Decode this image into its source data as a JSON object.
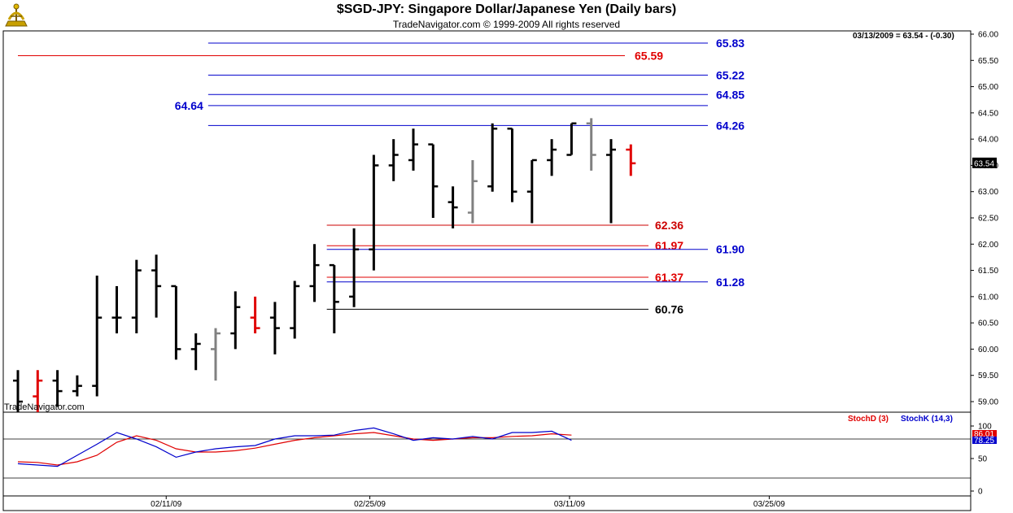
{
  "header": {
    "title": "$SGD-JPY:  Singapore Dollar/Japanese Yen  (Daily bars)",
    "subtitle": "TradeNavigator.com © 1999-2009 All rights reserved"
  },
  "price_readout": "03/13/2009 = 63.54 - (-0.30)",
  "watermark": "TradeNavigator.com",
  "colors": {
    "up_bar": "#000000",
    "neutral_bar": "#808080",
    "down_bar": "#e00000",
    "fib_blue": "#0000cc",
    "fib_red": "#cc0000",
    "stoch_d": "#cc0000",
    "stoch_k": "#0000cc"
  },
  "chart_data": [
    {
      "type": "ohlc",
      "title": "$SGD-JPY:  Singapore Dollar/Japanese Yen  (Daily bars)",
      "ylim": [
        58.8,
        66.0
      ],
      "y_ticks": [
        "59.00",
        "59.50",
        "60.00",
        "60.50",
        "61.00",
        "61.50",
        "62.00",
        "62.50",
        "63.00",
        "63.50",
        "64.00",
        "64.50",
        "65.00",
        "65.50",
        "66.00"
      ],
      "x_labels": [
        "02/11/09",
        "02/25/09",
        "03/11/09",
        "03/25/09"
      ],
      "last_price_label": "63.54",
      "bars": [
        {
          "o": 59.4,
          "h": 59.6,
          "l": 58.8,
          "c": 59.0,
          "color": "black"
        },
        {
          "o": 59.1,
          "h": 59.6,
          "l": 58.8,
          "c": 59.4,
          "color": "red"
        },
        {
          "o": 59.4,
          "h": 59.6,
          "l": 58.9,
          "c": 59.2,
          "color": "black"
        },
        {
          "o": 59.2,
          "h": 59.5,
          "l": 59.1,
          "c": 59.3,
          "color": "black"
        },
        {
          "o": 59.3,
          "h": 61.4,
          "l": 59.1,
          "c": 60.6,
          "color": "black"
        },
        {
          "o": 60.6,
          "h": 61.2,
          "l": 60.3,
          "c": 60.6,
          "color": "black"
        },
        {
          "o": 60.6,
          "h": 61.7,
          "l": 60.3,
          "c": 61.5,
          "color": "black"
        },
        {
          "o": 61.5,
          "h": 61.8,
          "l": 60.6,
          "c": 61.2,
          "color": "black"
        },
        {
          "o": 61.2,
          "h": 61.2,
          "l": 59.8,
          "c": 60.0,
          "color": "black"
        },
        {
          "o": 60.0,
          "h": 60.3,
          "l": 59.6,
          "c": 60.1,
          "color": "black"
        },
        {
          "o": 60.0,
          "h": 60.4,
          "l": 59.4,
          "c": 60.3,
          "color": "gray"
        },
        {
          "o": 60.3,
          "h": 61.1,
          "l": 60.0,
          "c": 60.8,
          "color": "black"
        },
        {
          "o": 60.6,
          "h": 61.0,
          "l": 60.3,
          "c": 60.4,
          "color": "red"
        },
        {
          "o": 60.6,
          "h": 60.9,
          "l": 59.9,
          "c": 60.4,
          "color": "black"
        },
        {
          "o": 60.4,
          "h": 61.3,
          "l": 60.2,
          "c": 61.2,
          "color": "black"
        },
        {
          "o": 61.2,
          "h": 62.0,
          "l": 60.9,
          "c": 61.6,
          "color": "black"
        },
        {
          "o": 61.6,
          "h": 61.6,
          "l": 60.3,
          "c": 60.9,
          "color": "black"
        },
        {
          "o": 61.0,
          "h": 62.3,
          "l": 60.8,
          "c": 61.9,
          "color": "black"
        },
        {
          "o": 61.9,
          "h": 63.7,
          "l": 61.5,
          "c": 63.5,
          "color": "black"
        },
        {
          "o": 63.5,
          "h": 64.0,
          "l": 63.2,
          "c": 63.7,
          "color": "black"
        },
        {
          "o": 63.6,
          "h": 64.2,
          "l": 63.4,
          "c": 63.9,
          "color": "black"
        },
        {
          "o": 63.9,
          "h": 63.9,
          "l": 62.5,
          "c": 63.1,
          "color": "black"
        },
        {
          "o": 62.8,
          "h": 63.1,
          "l": 62.3,
          "c": 62.7,
          "color": "black"
        },
        {
          "o": 62.6,
          "h": 63.6,
          "l": 62.4,
          "c": 63.2,
          "color": "gray"
        },
        {
          "o": 63.1,
          "h": 64.3,
          "l": 63.0,
          "c": 64.2,
          "color": "black"
        },
        {
          "o": 64.2,
          "h": 64.2,
          "l": 62.8,
          "c": 63.0,
          "color": "black"
        },
        {
          "o": 63.0,
          "h": 63.6,
          "l": 62.4,
          "c": 63.6,
          "color": "black"
        },
        {
          "o": 63.6,
          "h": 64.0,
          "l": 63.3,
          "c": 63.8,
          "color": "black"
        },
        {
          "o": 63.7,
          "h": 64.3,
          "l": 63.7,
          "c": 64.3,
          "color": "black"
        },
        {
          "o": 64.3,
          "h": 64.4,
          "l": 63.4,
          "c": 63.7,
          "color": "gray"
        },
        {
          "o": 63.7,
          "h": 64.0,
          "l": 62.4,
          "c": 63.8,
          "color": "black"
        },
        {
          "o": 63.8,
          "h": 63.9,
          "l": 63.3,
          "c": 63.54,
          "color": "red"
        }
      ],
      "levels": [
        {
          "value": 65.83,
          "label": "65.83",
          "color": "blue",
          "start_bar": 9.5,
          "label_side": "right"
        },
        {
          "value": 65.59,
          "label": "65.59",
          "color": "red",
          "start_bar": 0,
          "label_side": "right"
        },
        {
          "value": 65.22,
          "label": "65.22",
          "color": "blue",
          "start_bar": 9.5,
          "label_side": "right"
        },
        {
          "value": 64.85,
          "label": "64.85",
          "color": "blue",
          "start_bar": 9.5,
          "label_side": "right"
        },
        {
          "value": 64.64,
          "label": "64.64",
          "color": "blue",
          "start_bar": 9.5,
          "label_side": "left"
        },
        {
          "value": 64.26,
          "label": "64.26",
          "color": "blue",
          "start_bar": 9.5,
          "label_side": "right"
        },
        {
          "value": 62.36,
          "label": "62.36",
          "color": "darkred",
          "start_bar": 15.5,
          "label_side": "right"
        },
        {
          "value": 61.97,
          "label": "61.97",
          "color": "red",
          "start_bar": 15.5,
          "label_side": "right"
        },
        {
          "value": 61.9,
          "label": "61.90",
          "color": "blue",
          "start_bar": 15.5,
          "label_side": "far"
        },
        {
          "value": 61.37,
          "label": "61.37",
          "color": "red",
          "start_bar": 15.5,
          "label_side": "right"
        },
        {
          "value": 61.28,
          "label": "61.28",
          "color": "blue",
          "start_bar": 15.5,
          "label_side": "far"
        },
        {
          "value": 60.76,
          "label": "60.76",
          "color": "black",
          "start_bar": 15.5,
          "label_side": "right"
        }
      ]
    },
    {
      "type": "line",
      "title": "",
      "ylim": [
        -5,
        110
      ],
      "y_ticks": [
        "0",
        "50",
        "100"
      ],
      "legend_placement": "top-right",
      "reference_lines": [
        20,
        80
      ],
      "series": [
        {
          "name": "StochD (3)",
          "color": "red",
          "values": [
            45,
            44,
            40,
            45,
            55,
            75,
            85,
            78,
            65,
            60,
            60,
            62,
            66,
            72,
            78,
            82,
            85,
            88,
            90,
            85,
            80,
            78,
            80,
            82,
            82,
            84,
            85,
            88,
            86
          ]
        },
        {
          "name": "StochK (14,3)",
          "color": "blue",
          "values": [
            42,
            40,
            38,
            55,
            72,
            90,
            80,
            68,
            52,
            60,
            65,
            68,
            70,
            80,
            85,
            85,
            86,
            93,
            97,
            88,
            78,
            82,
            80,
            84,
            80,
            90,
            90,
            92,
            78
          ]
        }
      ],
      "last_value_labels": [
        "86.01",
        "78.25"
      ]
    }
  ]
}
